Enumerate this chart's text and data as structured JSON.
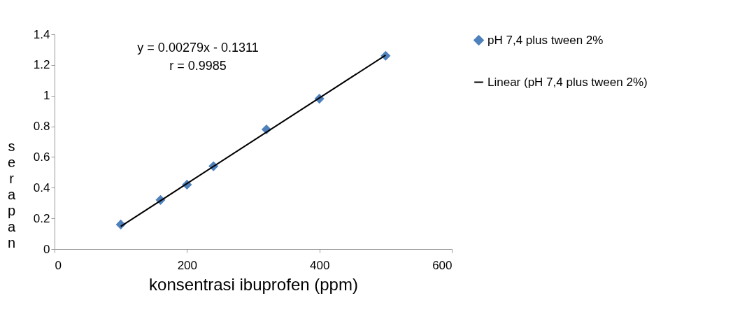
{
  "chart_data": {
    "type": "scatter",
    "xlabel": "konsentrasi ibuprofen (ppm)",
    "ylabel": "serapan",
    "annotations": [
      "y = 0.00279x - 0.1311",
      "r = 0.9985"
    ],
    "x": [
      100,
      160,
      200,
      240,
      320,
      400,
      500
    ],
    "series": [
      {
        "name": "pH 7,4 plus tween 2%",
        "color": "#4f81bd",
        "values": [
          0.16,
          0.32,
          0.42,
          0.54,
          0.78,
          0.98,
          1.26
        ],
        "marker": "diamond"
      },
      {
        "name": "Linear (pH 7,4 plus tween 2%)",
        "type": "line",
        "color": "#000000",
        "x": [
          100,
          500
        ],
        "values": [
          0.148,
          1.264
        ]
      }
    ],
    "xlim": [
      0,
      600
    ],
    "xticks": [
      0,
      200,
      400,
      600
    ],
    "ylim": [
      0,
      1.4
    ],
    "yticks": [
      0,
      0.2,
      0.4,
      0.6,
      0.8,
      1,
      1.2,
      1.4
    ],
    "grid": false,
    "legend": "right"
  }
}
